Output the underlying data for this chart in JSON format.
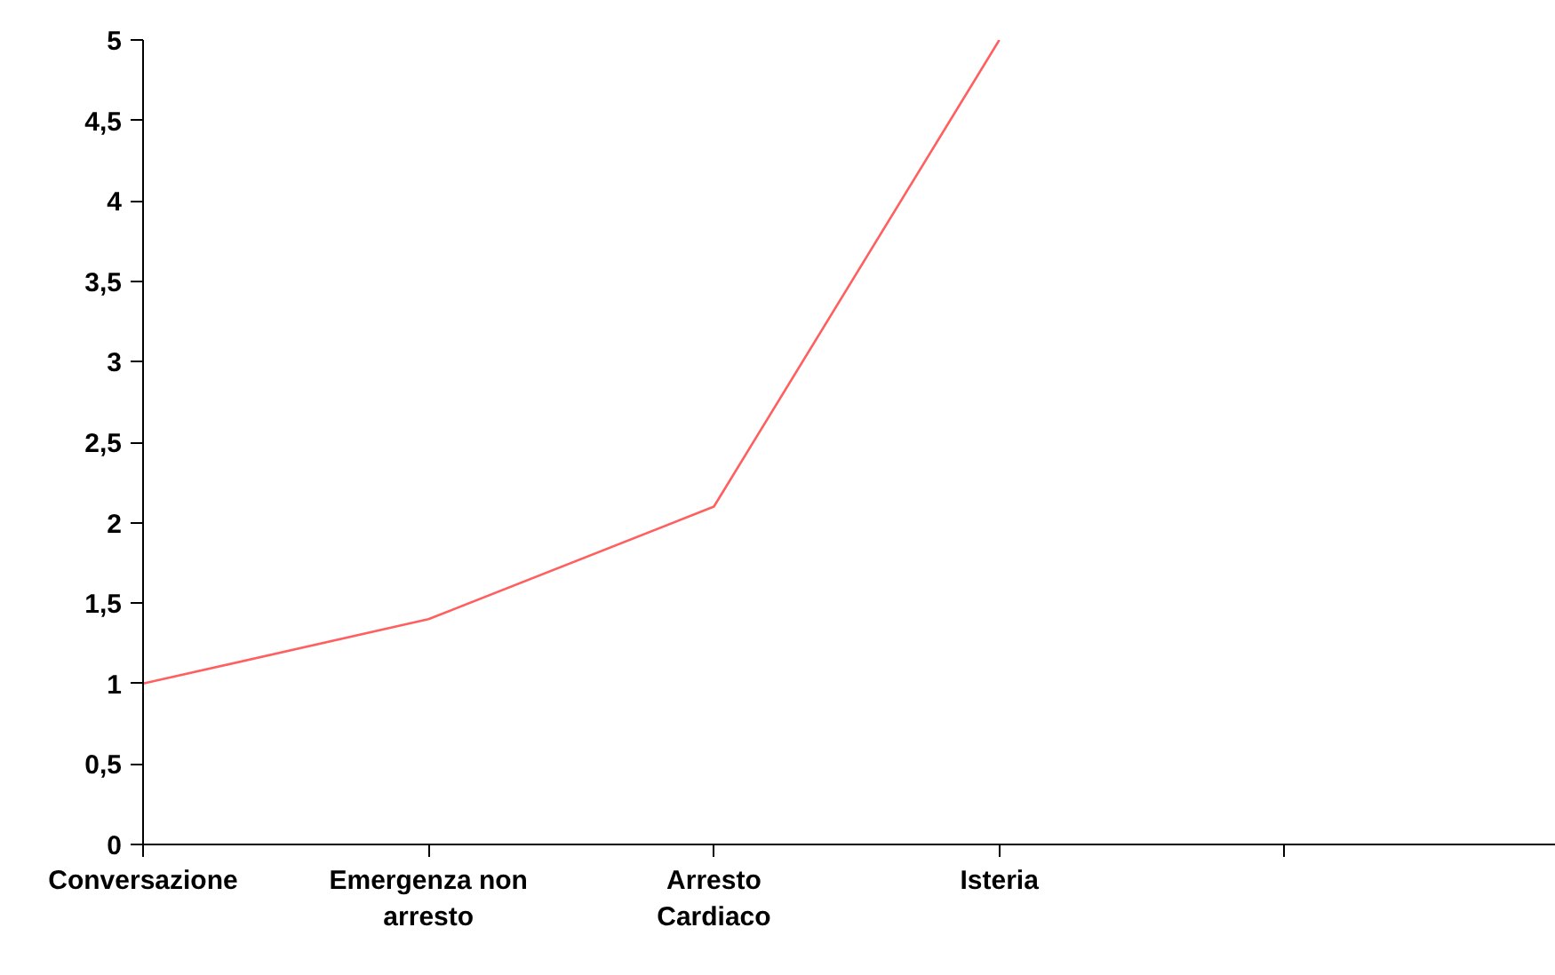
{
  "chart_data": {
    "type": "line",
    "categories": [
      "Conversazione",
      "Emergenza non arresto",
      "Arresto Cardiaco",
      "Isteria",
      null
    ],
    "series": [
      {
        "color": "#ff5f5f",
        "values": [
          1,
          1.4,
          2.1,
          5,
          null
        ]
      }
    ],
    "ylim": [
      0,
      5
    ],
    "yticks": [
      0,
      {
        "value": 0.5,
        "label": "0,5"
      },
      1,
      {
        "value": 1.5,
        "label": "1,5"
      },
      2,
      {
        "value": 2.5,
        "label": "2,5"
      },
      3,
      {
        "value": 3.5,
        "label": "3,5"
      },
      4,
      {
        "value": 4.5,
        "label": "4,5"
      },
      5
    ],
    "grid": false,
    "marker": "none",
    "line_style": "solid"
  }
}
